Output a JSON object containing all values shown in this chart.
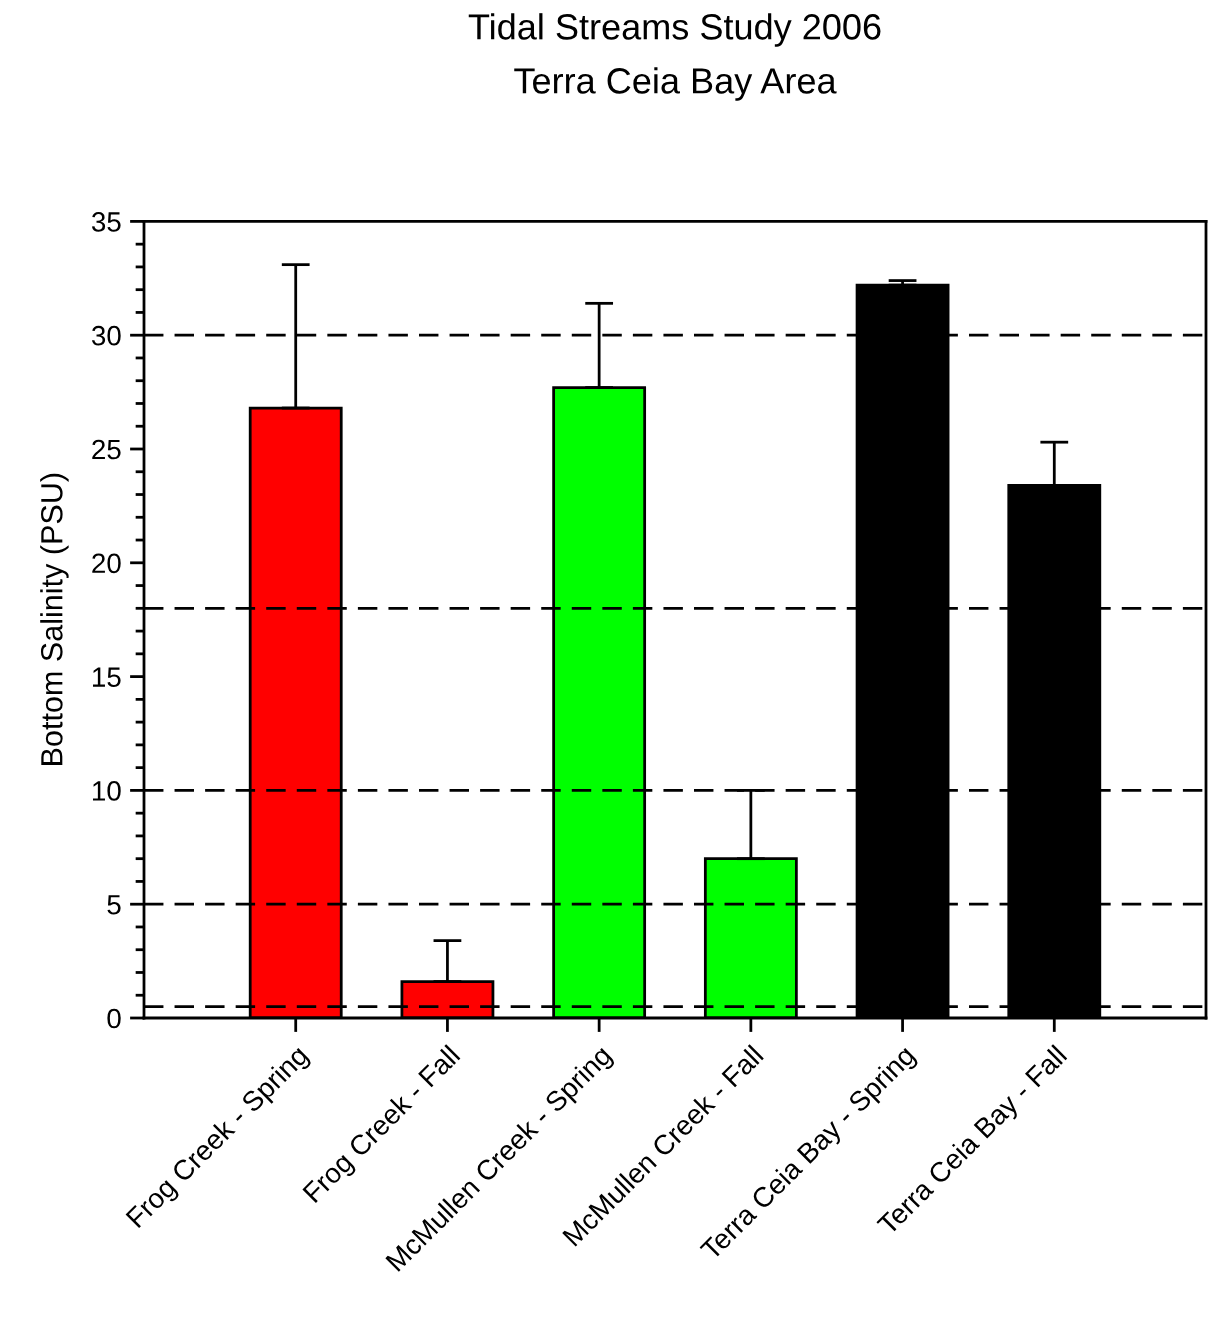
{
  "chart_data": {
    "type": "bar",
    "title": "Tidal Streams Study 2006",
    "subtitle": "Terra Ceia Bay Area",
    "ylabel": "Bottom Salinity (PSU)",
    "categories": [
      "Frog Creek - Spring",
      "Frog Creek - Fall",
      "McMullen Creek - Spring",
      "McMullen Creek - Fall",
      "Terra Ceia Bay - Spring",
      "Terra Ceia Bay - Fall"
    ],
    "values": [
      26.8,
      1.6,
      27.7,
      7.0,
      32.2,
      23.4
    ],
    "colors": [
      "#ff0000",
      "#ff0000",
      "#00ff00",
      "#00ff00",
      "#000000",
      "#000000"
    ],
    "errors": [
      [
        26.8,
        33.1
      ],
      [
        1.6,
        3.4
      ],
      [
        27.7,
        31.4
      ],
      [
        7.0,
        10.0
      ],
      [
        32.2,
        32.4
      ],
      [
        23.4,
        25.3
      ]
    ],
    "ylim": [
      0,
      35
    ],
    "yticks": [
      0,
      {
        "value": 1,
        "label": null
      },
      {
        "value": 2,
        "label": null
      },
      {
        "value": 3,
        "label": null
      },
      {
        "value": 4,
        "label": null
      },
      5,
      {
        "value": 6,
        "label": null
      },
      {
        "value": 7,
        "label": null
      },
      {
        "value": 8,
        "label": null
      },
      {
        "value": 9,
        "label": null
      },
      10,
      {
        "value": 11,
        "label": null
      },
      {
        "value": 12,
        "label": null
      },
      {
        "value": 13,
        "label": null
      },
      {
        "value": 14,
        "label": null
      },
      15,
      {
        "value": 16,
        "label": null
      },
      {
        "value": 17,
        "label": null
      },
      {
        "value": 18,
        "label": null
      },
      {
        "value": 19,
        "label": null
      },
      20,
      {
        "value": 21,
        "label": null
      },
      {
        "value": 22,
        "label": null
      },
      {
        "value": 23,
        "label": null
      },
      {
        "value": 24,
        "label": null
      },
      25,
      {
        "value": 26,
        "label": null
      },
      {
        "value": 27,
        "label": null
      },
      {
        "value": 28,
        "label": null
      },
      {
        "value": 29,
        "label": null
      },
      30,
      {
        "value": 31,
        "label": null
      },
      {
        "value": 32,
        "label": null
      },
      {
        "value": 33,
        "label": null
      },
      {
        "value": 34,
        "label": null
      },
      35
    ],
    "ref_lines": [
      {
        "axis": "y",
        "value": 0.5,
        "color": "#000000",
        "line_style": "dashed"
      },
      {
        "axis": "y",
        "value": 5,
        "color": "#000000",
        "line_style": "dashed"
      },
      {
        "axis": "y",
        "value": 10,
        "color": "#000000",
        "line_style": "dashed"
      },
      {
        "axis": "y",
        "value": 18,
        "color": "#000000",
        "line_style": "dashed"
      },
      {
        "axis": "y",
        "value": 30,
        "color": "#000000",
        "line_style": "dashed"
      }
    ]
  }
}
